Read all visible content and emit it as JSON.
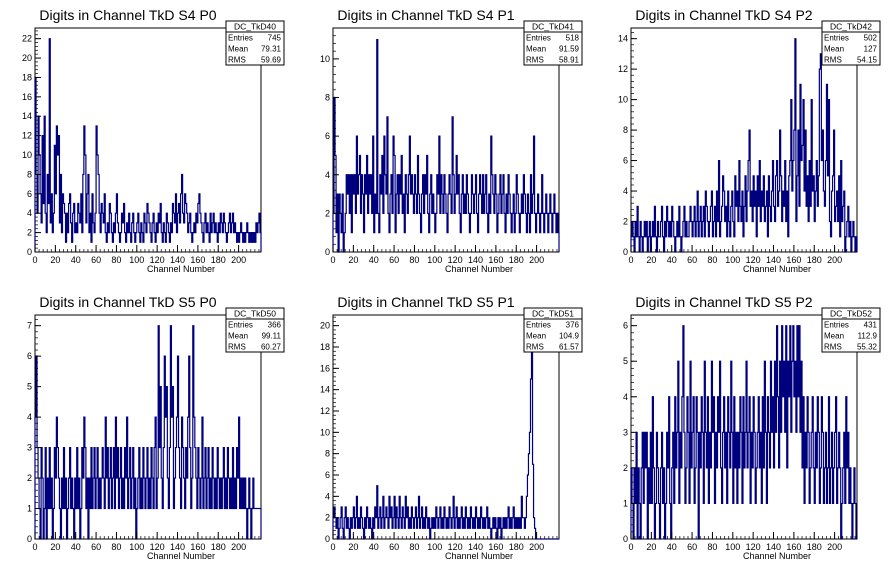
{
  "chart_data": [
    {
      "type": "histogram",
      "title": "Digits in Channel TkD S4 P0",
      "xlabel": "Channel Number",
      "ylabel": "",
      "xlim": [
        0,
        222
      ],
      "ylim": [
        0,
        23.1
      ],
      "xticks": [
        0,
        20,
        40,
        60,
        80,
        100,
        120,
        140,
        160,
        180,
        200
      ],
      "yticks": [
        0,
        2,
        4,
        6,
        8,
        10,
        12,
        14,
        16,
        18,
        20,
        22
      ],
      "stats": {
        "name": "DC_TkD40",
        "entries": "745",
        "mean": "79.31",
        "rms": "59.69"
      },
      "stats_labels": {
        "entries": "Entries",
        "mean": "Mean",
        "rms": "RMS"
      },
      "color": "#00007f",
      "values": [
        18,
        8,
        4,
        14,
        10,
        6,
        3,
        12,
        5,
        14,
        4,
        2,
        8,
        5,
        22,
        3,
        6,
        2,
        4,
        11,
        6,
        13,
        10,
        12,
        3,
        8,
        2,
        6,
        5,
        4,
        1,
        4,
        2,
        5,
        6,
        3,
        1,
        4,
        5,
        2,
        3,
        2,
        5,
        4,
        3,
        6,
        2,
        8,
        13,
        10,
        3,
        6,
        8,
        2,
        4,
        1,
        6,
        3,
        2,
        4,
        13,
        10,
        8,
        4,
        2,
        5,
        4,
        3,
        6,
        2,
        1,
        3,
        2,
        5,
        4,
        2,
        1,
        3,
        2,
        4,
        6,
        3,
        2,
        1,
        2,
        4,
        3,
        5,
        2,
        1,
        3,
        2,
        4,
        2,
        1,
        3,
        4,
        2,
        1,
        2,
        3,
        4,
        2,
        1,
        3,
        2,
        1,
        4,
        3,
        2,
        5,
        4,
        3,
        2,
        1,
        3,
        4,
        2,
        1,
        3,
        2,
        4,
        3,
        5,
        2,
        1,
        3,
        2,
        1,
        4,
        3,
        2,
        1,
        3,
        2,
        5,
        4,
        3,
        6,
        2,
        4,
        5,
        3,
        6,
        8,
        4,
        3,
        6,
        5,
        4,
        2,
        3,
        4,
        2,
        1,
        2,
        3,
        2,
        4,
        3,
        5,
        6,
        4,
        3,
        2,
        1,
        3,
        4,
        2,
        3,
        2,
        1,
        4,
        2,
        3,
        4,
        2,
        3,
        2,
        1,
        3,
        2,
        4,
        3,
        2,
        4,
        3,
        2,
        1,
        2,
        3,
        4,
        2,
        3,
        4,
        2,
        3,
        2,
        1,
        2,
        1,
        2,
        3,
        2,
        1,
        2,
        1,
        2,
        3,
        2,
        1,
        2,
        1,
        2,
        1,
        2,
        1,
        3,
        2,
        3,
        4,
        2
      ]
    },
    {
      "type": "histogram",
      "title": "Digits in Channel TkD S4 P1",
      "xlabel": "Channel Number",
      "ylabel": "",
      "xlim": [
        0,
        222
      ],
      "ylim": [
        0,
        11.6
      ],
      "xticks": [
        0,
        20,
        40,
        60,
        80,
        100,
        120,
        140,
        160,
        180,
        200
      ],
      "yticks": [
        0,
        2,
        4,
        6,
        8,
        10
      ],
      "stats": {
        "name": "DC_TkD41",
        "entries": "518",
        "mean": "91.59",
        "rms": "58.91"
      },
      "stats_labels": {
        "entries": "Entries",
        "mean": "Mean",
        "rms": "RMS"
      },
      "color": "#00007f",
      "values": [
        2,
        8,
        5,
        1,
        3,
        0,
        3,
        2,
        1,
        3,
        0,
        1,
        2,
        4,
        3,
        4,
        2,
        4,
        1,
        4,
        3,
        4,
        2,
        6,
        3,
        4,
        5,
        2,
        4,
        3,
        1,
        4,
        3,
        5,
        2,
        4,
        3,
        4,
        2,
        6,
        1,
        3,
        2,
        11,
        2,
        1,
        4,
        3,
        5,
        2,
        6,
        4,
        3,
        7,
        2,
        1,
        3,
        4,
        2,
        6,
        5,
        1,
        3,
        4,
        2,
        4,
        3,
        5,
        2,
        3,
        1,
        4,
        3,
        2,
        4,
        6,
        3,
        4,
        3,
        2,
        4,
        3,
        2,
        5,
        3,
        2,
        1,
        3,
        4,
        2,
        4,
        3,
        5,
        2,
        1,
        3,
        4,
        2,
        3,
        2,
        1,
        2,
        4,
        3,
        6,
        2,
        4,
        3,
        2,
        4,
        3,
        2,
        1,
        3,
        4,
        3,
        2,
        7,
        4,
        2,
        3,
        5,
        3,
        4,
        2,
        1,
        3,
        4,
        2,
        3,
        2,
        4,
        3,
        2,
        1,
        2,
        4,
        3,
        2,
        3,
        4,
        2,
        1,
        3,
        4,
        3,
        2,
        4,
        2,
        3,
        4,
        2,
        1,
        3,
        2,
        6,
        4,
        3,
        2,
        4,
        3,
        1,
        2,
        3,
        4,
        2,
        3,
        4,
        2,
        1,
        3,
        2,
        4,
        3,
        2,
        1,
        2,
        3,
        1,
        2,
        4,
        3,
        2,
        1,
        2,
        3,
        2,
        4,
        3,
        2,
        1,
        3,
        2,
        1,
        4,
        2,
        3,
        6,
        2,
        1,
        2,
        3,
        2,
        1,
        2,
        4,
        2,
        1,
        2,
        3,
        2,
        1,
        2,
        3,
        2,
        1,
        2,
        3,
        2,
        1,
        2,
        1
      ]
    },
    {
      "type": "histogram",
      "title": "Digits in Channel TkD S4 P2",
      "xlabel": "Channel Number",
      "ylabel": "",
      "xlim": [
        0,
        222
      ],
      "ylim": [
        0,
        14.7
      ],
      "xticks": [
        0,
        20,
        40,
        60,
        80,
        100,
        120,
        140,
        160,
        180,
        200
      ],
      "yticks": [
        0,
        2,
        4,
        6,
        8,
        10,
        12,
        14
      ],
      "stats": {
        "name": "DC_TkD42",
        "entries": "502",
        "mean": "127",
        "rms": "54.15"
      },
      "stats_labels": {
        "entries": "Entries",
        "mean": "Mean",
        "rms": "RMS"
      },
      "color": "#00007f",
      "values": [
        1,
        2,
        1,
        0,
        2,
        1,
        3,
        1,
        0,
        2,
        1,
        0,
        1,
        2,
        1,
        2,
        0,
        1,
        2,
        0,
        1,
        2,
        1,
        3,
        1,
        0,
        2,
        1,
        1,
        2,
        3,
        1,
        0,
        2,
        1,
        3,
        2,
        1,
        2,
        1,
        3,
        2,
        1,
        0,
        1,
        2,
        1,
        3,
        1,
        0,
        1,
        2,
        3,
        1,
        2,
        1,
        1,
        2,
        3,
        2,
        1,
        2,
        3,
        1,
        2,
        4,
        1,
        2,
        3,
        1,
        2,
        3,
        1,
        4,
        3,
        2,
        1,
        2,
        3,
        4,
        1,
        2,
        3,
        1,
        4,
        2,
        6,
        1,
        2,
        3,
        5,
        4,
        2,
        3,
        1,
        4,
        2,
        1,
        3,
        4,
        2,
        1,
        5,
        3,
        4,
        2,
        6,
        3,
        2,
        4,
        1,
        3,
        5,
        2,
        4,
        6,
        8,
        3,
        4,
        2,
        5,
        3,
        4,
        1,
        5,
        3,
        6,
        2,
        4,
        3,
        5,
        2,
        3,
        4,
        1,
        5,
        3,
        2,
        4,
        6,
        3,
        2,
        5,
        6,
        3,
        4,
        8,
        5,
        2,
        4,
        3,
        6,
        2,
        4,
        1,
        5,
        6,
        10,
        4,
        6,
        8,
        14,
        2,
        5,
        8,
        3,
        11,
        6,
        7,
        10,
        4,
        8,
        3,
        5,
        2,
        6,
        3,
        10,
        4,
        5,
        2,
        4,
        6,
        3,
        5,
        12,
        13,
        6,
        8,
        4,
        3,
        6,
        11,
        5,
        10,
        2,
        1,
        4,
        5,
        8,
        2,
        3,
        4,
        2,
        5,
        1,
        6,
        2,
        3,
        4,
        0,
        1,
        2,
        3,
        1,
        2,
        0,
        1,
        2,
        1,
        0,
        1
      ]
    },
    {
      "type": "histogram",
      "title": "Digits in Channel TkD S5 P0",
      "xlabel": "Channel Number",
      "ylabel": "",
      "xlim": [
        0,
        222
      ],
      "ylim": [
        0,
        7.35
      ],
      "xticks": [
        0,
        20,
        40,
        60,
        80,
        100,
        120,
        140,
        160,
        180,
        200
      ],
      "yticks": [
        0,
        1,
        2,
        3,
        4,
        5,
        6,
        7
      ],
      "stats": {
        "name": "DC_TkD50",
        "entries": "366",
        "mean": "99.11",
        "rms": "60.27"
      },
      "stats_labels": {
        "entries": "Entries",
        "mean": "Mean",
        "rms": "RMS"
      },
      "color": "#00007f",
      "values": [
        4,
        6,
        3,
        2,
        1,
        0,
        3,
        2,
        0,
        1,
        3,
        0,
        2,
        1,
        3,
        1,
        2,
        0,
        1,
        3,
        2,
        4,
        3,
        2,
        1,
        0,
        2,
        1,
        3,
        1,
        2,
        0,
        1,
        2,
        3,
        1,
        2,
        1,
        0,
        2,
        1,
        3,
        1,
        2,
        0,
        1,
        3,
        2,
        4,
        3,
        1,
        2,
        0,
        2,
        1,
        3,
        1,
        2,
        3,
        1,
        2,
        3,
        1,
        2,
        1,
        2,
        3,
        2,
        1,
        4,
        2,
        3,
        1,
        2,
        3,
        1,
        2,
        3,
        1,
        4,
        2,
        3,
        1,
        2,
        3,
        1,
        2,
        1,
        3,
        2,
        4,
        1,
        2,
        3,
        1,
        2,
        3,
        1,
        2,
        0,
        1,
        2,
        3,
        1,
        2,
        1,
        3,
        2,
        1,
        2,
        3,
        1,
        2,
        1,
        3,
        2,
        1,
        3,
        4,
        1,
        2,
        7,
        3,
        5,
        2,
        1,
        3,
        6,
        4,
        5,
        2,
        1,
        3,
        7,
        4,
        5,
        1,
        2,
        3,
        4,
        6,
        3,
        2,
        1,
        4,
        3,
        2,
        1,
        3,
        2,
        4,
        6,
        3,
        1,
        2,
        7,
        4,
        3,
        2,
        1,
        3,
        2,
        1,
        2,
        4,
        1,
        2,
        3,
        1,
        2,
        3,
        1,
        2,
        1,
        3,
        2,
        1,
        2,
        1,
        3,
        2,
        1,
        2,
        1,
        2,
        3,
        1,
        2,
        1,
        3,
        2,
        1,
        2,
        1,
        3,
        1,
        2,
        1,
        3,
        2,
        4,
        1,
        2,
        1,
        2,
        1,
        2,
        1,
        0,
        1,
        2,
        1,
        0,
        1,
        2,
        1,
        1,
        1,
        1,
        1,
        1,
        1
      ]
    },
    {
      "type": "histogram",
      "title": "Digits in Channel TkD S5 P1",
      "xlabel": "Channel Number",
      "ylabel": "",
      "xlim": [
        0,
        222
      ],
      "ylim": [
        0,
        21
      ],
      "xticks": [
        0,
        20,
        40,
        60,
        80,
        100,
        120,
        140,
        160,
        180,
        200
      ],
      "yticks": [
        0,
        2,
        4,
        6,
        8,
        10,
        12,
        14,
        16,
        18,
        20
      ],
      "stats": {
        "name": "DC_TkD51",
        "entries": "376",
        "mean": "104.9",
        "rms": "61.57"
      },
      "stats_labels": {
        "entries": "Entries",
        "mean": "Mean",
        "rms": "RMS"
      },
      "color": "#00007f",
      "values": [
        2,
        3,
        2,
        1,
        2,
        0,
        1,
        2,
        3,
        1,
        0,
        2,
        3,
        1,
        2,
        1,
        0,
        2,
        1,
        2,
        3,
        1,
        2,
        4,
        1,
        2,
        1,
        3,
        2,
        1,
        0,
        2,
        1,
        3,
        2,
        1,
        2,
        1,
        0,
        2,
        1,
        3,
        2,
        5,
        1,
        2,
        3,
        1,
        2,
        4,
        1,
        2,
        3,
        2,
        1,
        4,
        2,
        3,
        1,
        2,
        4,
        1,
        3,
        2,
        1,
        4,
        2,
        1,
        3,
        2,
        1,
        4,
        2,
        3,
        1,
        2,
        1,
        3,
        2,
        1,
        2,
        3,
        1,
        2,
        4,
        1,
        2,
        3,
        1,
        2,
        1,
        3,
        2,
        1,
        2,
        0,
        1,
        2,
        1,
        2,
        1,
        3,
        2,
        1,
        2,
        3,
        1,
        2,
        1,
        3,
        2,
        1,
        2,
        1,
        3,
        2,
        1,
        2,
        4,
        1,
        2,
        3,
        1,
        2,
        1,
        2,
        3,
        1,
        2,
        1,
        3,
        2,
        1,
        2,
        1,
        3,
        2,
        1,
        2,
        1,
        3,
        2,
        1,
        2,
        1,
        3,
        2,
        1,
        2,
        1,
        2,
        3,
        1,
        2,
        1,
        0,
        1,
        2,
        1,
        2,
        1,
        0,
        2,
        1,
        2,
        0,
        1,
        2,
        1,
        2,
        1,
        2,
        3,
        1,
        2,
        1,
        2,
        3,
        1,
        2,
        1,
        2,
        1,
        2,
        1,
        4,
        2,
        2,
        1,
        2,
        4,
        6,
        8,
        10,
        15,
        18,
        7,
        2,
        1,
        0,
        0,
        0,
        0,
        0,
        0,
        0,
        0,
        0,
        0,
        0,
        0,
        0,
        0,
        0,
        0,
        0,
        0,
        0,
        0,
        0,
        0,
        0
      ]
    },
    {
      "type": "histogram",
      "title": "Digits in Channel TkD S5 P2",
      "xlabel": "Channel Number",
      "ylabel": "",
      "xlim": [
        0,
        222
      ],
      "ylim": [
        0,
        6.3
      ],
      "xticks": [
        0,
        20,
        40,
        60,
        80,
        100,
        120,
        140,
        160,
        180,
        200
      ],
      "yticks": [
        0,
        1,
        2,
        3,
        4,
        5,
        6
      ],
      "stats": {
        "name": "DC_TkD52",
        "entries": "431",
        "mean": "112.9",
        "rms": "55.32"
      },
      "stats_labels": {
        "entries": "Entries",
        "mean": "Mean",
        "rms": "RMS"
      },
      "color": "#00007f",
      "values": [
        2,
        1,
        0,
        2,
        1,
        3,
        0,
        2,
        1,
        0,
        2,
        3,
        1,
        3,
        2,
        3,
        0,
        2,
        1,
        3,
        1,
        4,
        2,
        0,
        1,
        3,
        2,
        1,
        0,
        2,
        3,
        1,
        2,
        0,
        1,
        3,
        2,
        4,
        1,
        0,
        2,
        3,
        1,
        4,
        2,
        3,
        5,
        1,
        3,
        2,
        4,
        6,
        3,
        1,
        2,
        4,
        3,
        1,
        5,
        2,
        3,
        4,
        1,
        2,
        4,
        3,
        0,
        3,
        2,
        4,
        3,
        1,
        5,
        3,
        2,
        4,
        1,
        3,
        2,
        5,
        3,
        4,
        1,
        3,
        2,
        4,
        3,
        5,
        2,
        1,
        3,
        4,
        2,
        3,
        1,
        4,
        3,
        2,
        5,
        3,
        1,
        4,
        2,
        3,
        1,
        3,
        2,
        4,
        3,
        1,
        4,
        2,
        3,
        5,
        2,
        3,
        4,
        1,
        3,
        2,
        4,
        3,
        1,
        2,
        3,
        4,
        2,
        3,
        1,
        4,
        2,
        5,
        3,
        1,
        4,
        3,
        2,
        5,
        3,
        4,
        2,
        5,
        3,
        6,
        4,
        2,
        5,
        3,
        6,
        4,
        5,
        3,
        6,
        2,
        5,
        4,
        6,
        3,
        5,
        6,
        4,
        5,
        3,
        6,
        4,
        6,
        3,
        5,
        2,
        4,
        1,
        3,
        2,
        4,
        3,
        1,
        2,
        3,
        4,
        2,
        1,
        3,
        2,
        4,
        3,
        1,
        2,
        4,
        3,
        1,
        2,
        3,
        1,
        2,
        4,
        1,
        2,
        3,
        1,
        2,
        3,
        4,
        1,
        2,
        3,
        2,
        0,
        1,
        2,
        3,
        1,
        4,
        2,
        3,
        1,
        2,
        1,
        0,
        1,
        2,
        1,
        0
      ]
    }
  ]
}
